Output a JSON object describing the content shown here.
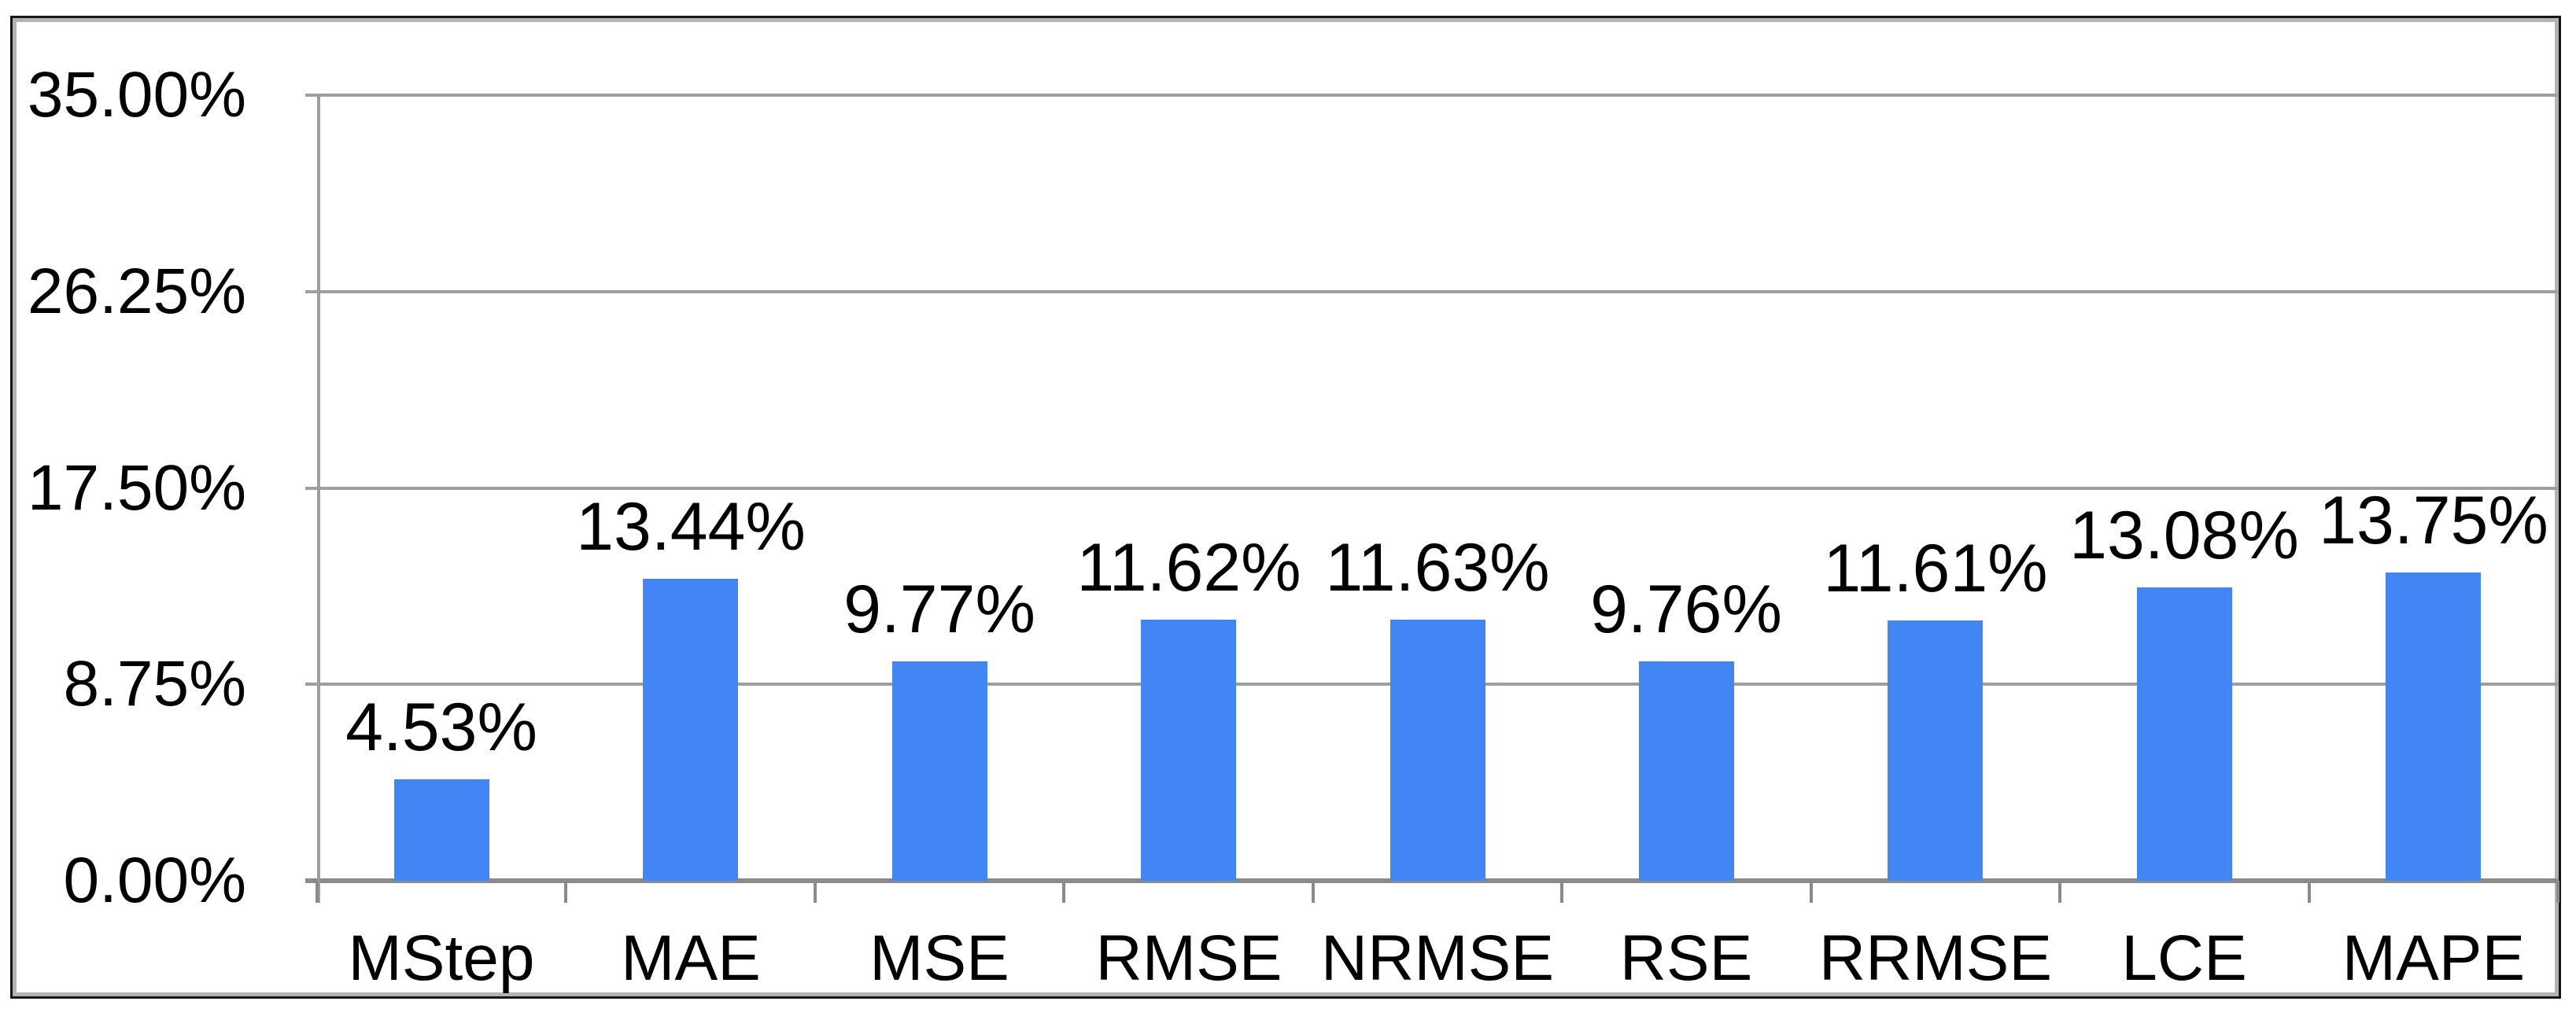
{
  "chart_data": {
    "type": "bar",
    "title": "",
    "xlabel": "",
    "ylabel": "",
    "categories": [
      "MStep",
      "MAE",
      "MSE",
      "RMSE",
      "NRMSE",
      "RSE",
      "RRMSE",
      "LCE",
      "MAPE"
    ],
    "values": [
      4.53,
      13.44,
      9.77,
      11.62,
      11.63,
      9.76,
      11.61,
      13.08,
      13.75
    ],
    "value_labels": [
      "4.53%",
      "13.44%",
      "9.77%",
      "11.62%",
      "11.63%",
      "9.76%",
      "11.61%",
      "13.08%",
      "13.75%"
    ],
    "ylim": [
      0,
      35
    ],
    "y_ticks": [
      0,
      8.75,
      17.5,
      26.25,
      35
    ],
    "y_tick_labels": [
      "0.00%",
      "8.75%",
      "17.50%",
      "26.25%",
      "35.00%"
    ],
    "grid": true,
    "legend_position": "none",
    "colors": {
      "bar": "#4285f4",
      "gridline": "#9e9e9e",
      "axis": "#8a8a8a",
      "text": "#000000",
      "frame_border": "#161616",
      "frame_inner_shadow": "#b3b3b3",
      "background": "#ffffff"
    }
  }
}
